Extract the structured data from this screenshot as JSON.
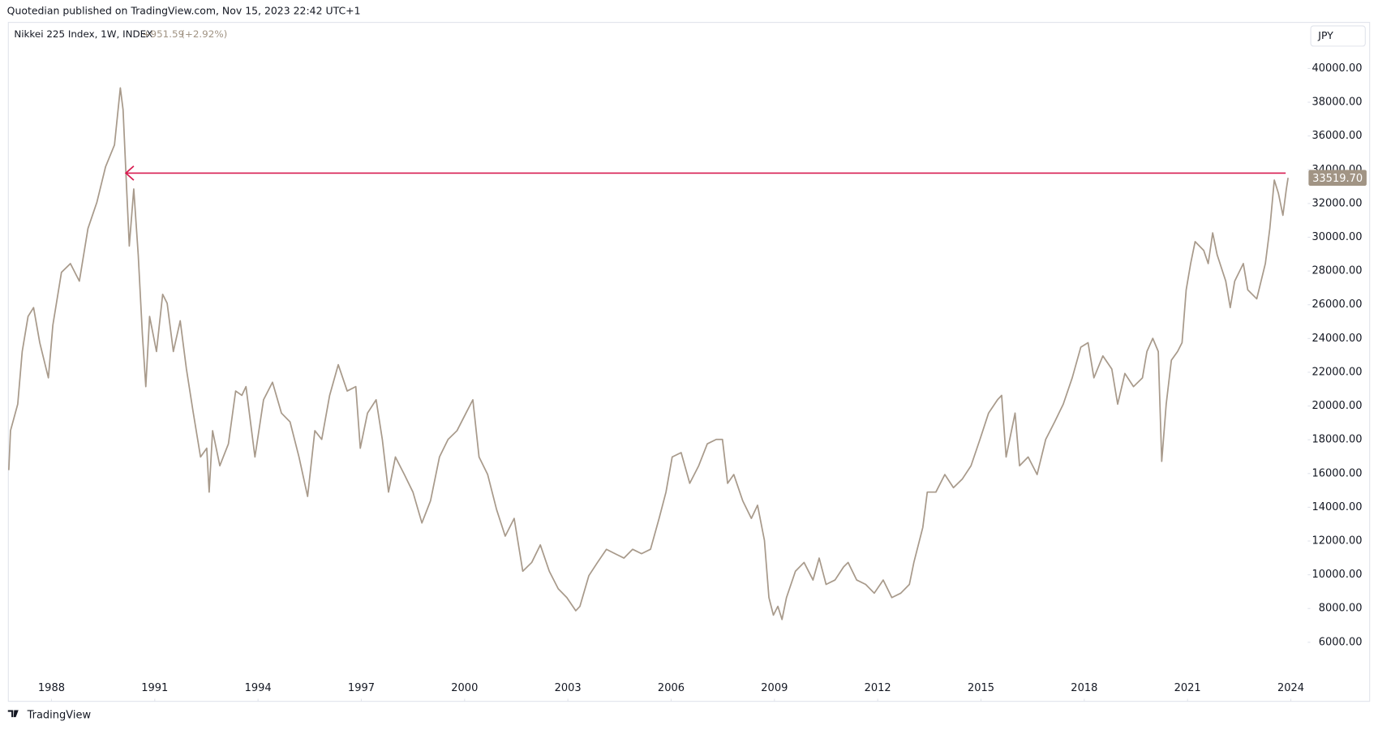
{
  "chart_data": {
    "type": "line",
    "source": "Quotedian published on TradingView.com, Nov 15, 2023 22:42 UTC+1",
    "legend": {
      "change": "+951.59",
      "change_pct": "(+2.92%)"
    },
    "currency": "JPY",
    "brand": "TradingView",
    "last_label": "33519.70",
    "x": [
      1986.76,
      1986.81,
      1987.02,
      1987.15,
      1987.32,
      1987.48,
      1987.66,
      1987.91,
      1988.04,
      1988.29,
      1988.55,
      1988.81,
      1989.06,
      1989.32,
      1989.57,
      1989.83,
      1990.0,
      1990.08,
      1990.16,
      1990.26,
      1990.39,
      1990.52,
      1990.64,
      1990.74,
      1990.85,
      1991.05,
      1991.23,
      1991.36,
      1991.54,
      1991.74,
      1991.92,
      1992.12,
      1992.33,
      1992.51,
      1992.58,
      1992.68,
      1992.89,
      1993.14,
      1993.35,
      1993.53,
      1993.65,
      1993.91,
      1994.16,
      1994.42,
      1994.68,
      1994.93,
      1995.19,
      1995.44,
      1995.65,
      1995.85,
      1996.08,
      1996.33,
      1996.59,
      1996.84,
      1996.97,
      1997.18,
      1997.43,
      1997.61,
      1997.79,
      1997.99,
      1998.25,
      1998.5,
      1998.76,
      1999.01,
      1999.27,
      1999.52,
      1999.78,
      2000.04,
      2000.24,
      2000.42,
      2000.67,
      2000.93,
      2001.18,
      2001.44,
      2001.69,
      2001.95,
      2002.2,
      2002.46,
      2002.72,
      2002.97,
      2003.23,
      2003.35,
      2003.61,
      2003.86,
      2004.12,
      2004.37,
      2004.63,
      2004.88,
      2005.14,
      2005.4,
      2005.65,
      2005.85,
      2006.03,
      2006.29,
      2006.54,
      2006.8,
      2007.05,
      2007.31,
      2007.49,
      2007.64,
      2007.82,
      2008.08,
      2008.33,
      2008.51,
      2008.71,
      2008.84,
      2008.97,
      2009.1,
      2009.22,
      2009.35,
      2009.61,
      2009.86,
      2010.12,
      2010.3,
      2010.5,
      2010.76,
      2011.01,
      2011.14,
      2011.39,
      2011.65,
      2011.9,
      2012.16,
      2012.41,
      2012.67,
      2012.92,
      2013.05,
      2013.31,
      2013.44,
      2013.69,
      2013.95,
      2014.2,
      2014.46,
      2014.71,
      2014.97,
      2015.22,
      2015.48,
      2015.6,
      2015.73,
      2015.99,
      2016.12,
      2016.37,
      2016.63,
      2016.88,
      2017.14,
      2017.39,
      2017.65,
      2017.9,
      2018.11,
      2018.28,
      2018.54,
      2018.8,
      2018.97,
      2019.18,
      2019.43,
      2019.69,
      2019.82,
      2019.99,
      2020.15,
      2020.25,
      2020.38,
      2020.53,
      2020.71,
      2020.84,
      2020.96,
      2021.09,
      2021.22,
      2021.47,
      2021.6,
      2021.73,
      2021.86,
      2022.11,
      2022.24,
      2022.37,
      2022.62,
      2022.75,
      2023.01,
      2023.26,
      2023.39,
      2023.52,
      2023.64,
      2023.77,
      2023.87,
      2023.92
    ],
    "series": [
      {
        "name": "Nikkei 225 Index, 1W, INDEX",
        "color": "#a89a8b",
        "values": [
          16200,
          18540,
          20110,
          23230,
          25310,
          25830,
          23750,
          21670,
          24790,
          27920,
          28440,
          27400,
          30520,
          32080,
          34170,
          35470,
          38850,
          37550,
          33910,
          29480,
          32860,
          28960,
          24270,
          21150,
          25310,
          23230,
          26620,
          26090,
          23230,
          25050,
          22190,
          19580,
          16980,
          17500,
          14900,
          18540,
          16460,
          17760,
          20890,
          20630,
          21150,
          16980,
          20370,
          21410,
          19580,
          19060,
          16980,
          14640,
          18540,
          18020,
          20630,
          22450,
          20890,
          21150,
          17500,
          19580,
          20370,
          18020,
          14900,
          16980,
          15940,
          14900,
          13070,
          14380,
          16980,
          18020,
          18540,
          19580,
          20370,
          16980,
          15940,
          13860,
          12290,
          13340,
          10210,
          10730,
          11770,
          10210,
          9170,
          8650,
          7870,
          8130,
          9950,
          10730,
          11510,
          11250,
          10990,
          11510,
          11250,
          11510,
          13340,
          14900,
          16980,
          17240,
          15420,
          16460,
          17760,
          18020,
          18020,
          15420,
          15940,
          14380,
          13340,
          14120,
          12030,
          8650,
          7610,
          8130,
          7350,
          8650,
          10210,
          10730,
          9690,
          10990,
          9430,
          9690,
          10470,
          10730,
          9690,
          9430,
          8910,
          9690,
          8650,
          8910,
          9430,
          10730,
          12810,
          14900,
          14900,
          15940,
          15160,
          15680,
          16460,
          18020,
          19580,
          20370,
          20630,
          16980,
          19580,
          16460,
          16980,
          15940,
          18020,
          19060,
          20110,
          21670,
          23490,
          23750,
          21670,
          22970,
          22190,
          20110,
          21930,
          21150,
          21670,
          23230,
          24010,
          23230,
          16720,
          20110,
          22710,
          23230,
          23750,
          26880,
          28440,
          29740,
          29220,
          28440,
          30260,
          28960,
          27400,
          25830,
          27400,
          28440,
          26880,
          26350,
          28440,
          30520,
          33390,
          32600,
          31300,
          32860,
          33519.7
        ]
      }
    ],
    "hline": {
      "value": 33800,
      "x": [
        1990.16,
        2023.85
      ],
      "color": "#d81b50"
    },
    "label_color": "#a19484",
    "xlim": [
      1986.76,
      2024.49
    ],
    "xticks": [
      1988,
      1991,
      1994,
      1997,
      2000,
      2003,
      2006,
      2009,
      2012,
      2015,
      2018,
      2021,
      2024
    ],
    "ylim": [
      2500,
      42600
    ],
    "yticks": [
      {
        "value": 6000,
        "label": "6000.00"
      },
      {
        "value": 8000,
        "label": "8000.00"
      },
      {
        "value": 10000,
        "label": "10000.00"
      },
      {
        "value": 12000,
        "label": "12000.00"
      },
      {
        "value": 14000,
        "label": "14000.00"
      },
      {
        "value": 16000,
        "label": "16000.00"
      },
      {
        "value": 18000,
        "label": "18000.00"
      },
      {
        "value": 20000,
        "label": "20000.00"
      },
      {
        "value": 22000,
        "label": "22000.00"
      },
      {
        "value": 24000,
        "label": "24000.00"
      },
      {
        "value": 26000,
        "label": "26000.00"
      },
      {
        "value": 28000,
        "label": "28000.00"
      },
      {
        "value": 30000,
        "label": "30000.00"
      },
      {
        "value": 32000,
        "label": "32000.00"
      },
      {
        "value": 34000,
        "label": "34000.00"
      },
      {
        "value": 36000,
        "label": "36000.00"
      },
      {
        "value": 38000,
        "label": "38000.00"
      },
      {
        "value": 40000,
        "label": "40000.00"
      }
    ],
    "grid": false
  }
}
